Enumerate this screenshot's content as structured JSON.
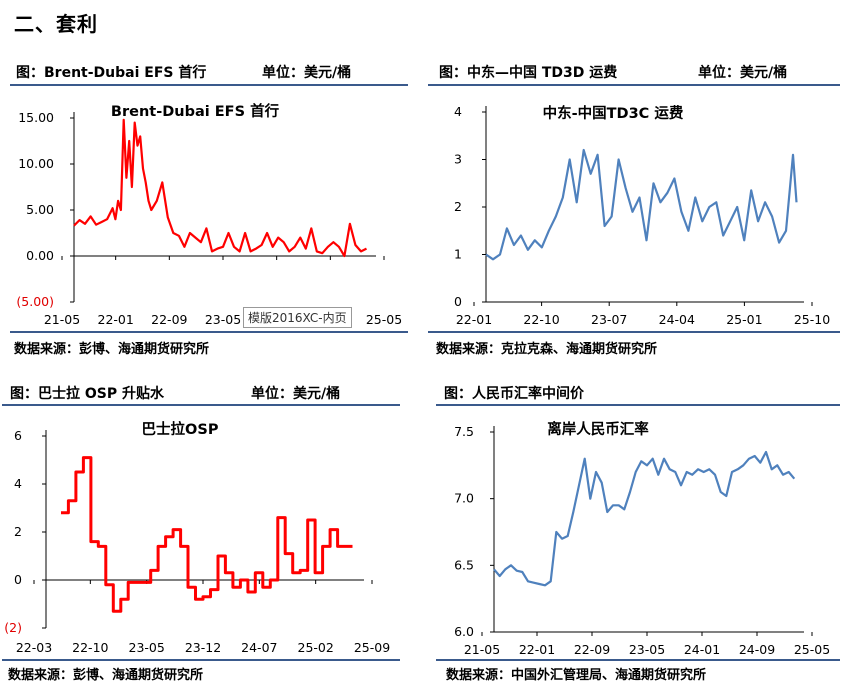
{
  "page": {
    "section_title": "二、套利",
    "overlay_label": "模版2016XC-内页"
  },
  "panels": [
    {
      "title": "图：Brent-Dubai EFS 首行",
      "unit": "单位：美元/桶",
      "source": "数据来源：彭博、海通期货研究所"
    },
    {
      "title": "图：中东—中国 TD3D 运费",
      "unit": "单位：美元/桶",
      "source": "数据来源：克拉克森、海通期货研究所"
    },
    {
      "title": "图：巴士拉 OSP 升贴水",
      "unit": "单位：美元/桶",
      "source": "数据来源：彭博、海通期货研究所"
    },
    {
      "title": "图：人民币汇率中间价",
      "unit": "",
      "source": "数据来源：中国外汇管理局、海通期货研究所"
    }
  ],
  "chart_data": [
    {
      "type": "line",
      "title": "Brent-Dubai EFS 首行",
      "color": "#ff0000",
      "y_tick_labels": [
        "15.00",
        "10.00",
        "5.00",
        "0.00",
        "(5.00)"
      ],
      "y_ticks": [
        15,
        10,
        5,
        0,
        -5
      ],
      "ylim": [
        -5,
        15
      ],
      "x_tick_labels": [
        "21-05",
        "22-01",
        "22-09",
        "23-05",
        "24-01",
        "24-09",
        "25-05"
      ],
      "xlim": [
        0,
        54
      ],
      "x": [
        0,
        1,
        2,
        3,
        4,
        5,
        6,
        7,
        7.5,
        8,
        8.5,
        9,
        9.5,
        10,
        10.5,
        11,
        11.5,
        12,
        12.5,
        13,
        13.5,
        14,
        15,
        16,
        17,
        18,
        19,
        20,
        21,
        22,
        23,
        24,
        25,
        26,
        27,
        28,
        29,
        30,
        31,
        32,
        33,
        34,
        35,
        36,
        37,
        38,
        39,
        40,
        41,
        42,
        43,
        44,
        45,
        46,
        47,
        48,
        49,
        50,
        51,
        52,
        53
      ],
      "values": [
        3.3,
        3.9,
        3.5,
        4.3,
        3.4,
        3.7,
        4.0,
        5.2,
        4.0,
        6.0,
        5.0,
        14.8,
        8.5,
        12.5,
        7.5,
        14.5,
        12.0,
        13.0,
        9.5,
        8.0,
        6.0,
        5.0,
        6.0,
        8.0,
        4.2,
        2.5,
        2.2,
        1.0,
        2.5,
        2.0,
        1.5,
        3.0,
        0.5,
        0.8,
        1.0,
        2.5,
        1.0,
        0.5,
        2.5,
        0.5,
        0.8,
        1.2,
        2.5,
        1.0,
        2.0,
        1.5,
        0.5,
        1.0,
        2.0,
        0.8,
        3.0,
        0.5,
        0.3,
        1.0,
        1.5,
        1.0,
        0.0,
        3.5,
        1.2,
        0.5,
        0.8
      ]
    },
    {
      "type": "line",
      "title": "中东-中国TD3C 运费",
      "color": "#4f81bd",
      "y_tick_labels": [
        "4",
        "3",
        "2",
        "1",
        "0"
      ],
      "y_ticks": [
        4,
        3,
        2,
        1,
        0
      ],
      "ylim": [
        0,
        4
      ],
      "x_tick_labels": [
        "22-01",
        "22-10",
        "23-07",
        "24-04",
        "25-01",
        "25-10"
      ],
      "xlim": [
        0,
        45
      ],
      "x": [
        0,
        1,
        2,
        3,
        4,
        5,
        6,
        7,
        8,
        9,
        10,
        11,
        12,
        13,
        14,
        15,
        16,
        17,
        18,
        19,
        20,
        21,
        22,
        23,
        24,
        25,
        26,
        27,
        28,
        29,
        30,
        31,
        32,
        33,
        34,
        35,
        36,
        37,
        38,
        39,
        40,
        41,
        42,
        43,
        44,
        44.5
      ],
      "values": [
        1.0,
        0.9,
        1.0,
        1.55,
        1.2,
        1.4,
        1.1,
        1.3,
        1.15,
        1.5,
        1.8,
        2.2,
        3.0,
        2.1,
        3.2,
        2.7,
        3.1,
        1.6,
        1.8,
        3.0,
        2.4,
        1.9,
        2.2,
        1.3,
        2.5,
        2.1,
        2.3,
        2.6,
        1.9,
        1.5,
        2.2,
        1.7,
        2.0,
        2.1,
        1.4,
        1.7,
        2.0,
        1.3,
        2.35,
        1.7,
        2.1,
        1.8,
        1.25,
        1.5,
        3.1,
        2.1
      ]
    },
    {
      "type": "line",
      "title": "巴士拉OSP",
      "color": "#ff0000",
      "y_tick_labels": [
        "6",
        "4",
        "2",
        "0",
        "(2)"
      ],
      "y_ticks": [
        6,
        4,
        2,
        0,
        -2
      ],
      "ylim": [
        -2,
        6
      ],
      "x_tick_labels": [
        "22-03",
        "22-10",
        "23-05",
        "23-12",
        "24-07",
        "25-02",
        "25-09"
      ],
      "xlim": [
        0,
        42
      ],
      "x": [
        2,
        3,
        4,
        5,
        6,
        7,
        8,
        9,
        10,
        11,
        12,
        13,
        14,
        15,
        16,
        17,
        18,
        19,
        20,
        21,
        22,
        23,
        24,
        25,
        26,
        27,
        28,
        29,
        30,
        31,
        32,
        33,
        34,
        35,
        36,
        37,
        38,
        39,
        40
      ],
      "values": [
        2.8,
        3.3,
        4.5,
        5.1,
        1.6,
        1.4,
        -0.2,
        -1.3,
        -0.8,
        -0.1,
        -0.1,
        -0.1,
        0.4,
        1.4,
        1.8,
        2.1,
        1.4,
        -0.3,
        -0.8,
        -0.7,
        -0.4,
        1.0,
        0.3,
        -0.3,
        0.0,
        -0.5,
        0.3,
        -0.3,
        0.0,
        2.6,
        1.1,
        0.3,
        0.4,
        2.5,
        0.3,
        1.4,
        2.1,
        1.4,
        1.4
      ]
    },
    {
      "type": "line",
      "title": "离岸人民币汇率",
      "color": "#4f81bd",
      "y_tick_labels": [
        "7.5",
        "7.0",
        "6.5",
        "6.0"
      ],
      "y_ticks": [
        7.5,
        7.0,
        6.5,
        6.0
      ],
      "ylim": [
        6.0,
        7.5
      ],
      "x_tick_labels": [
        "21-05",
        "22-01",
        "22-09",
        "23-05",
        "24-01",
        "24-09",
        "25-05"
      ],
      "xlim": [
        0,
        54
      ],
      "x": [
        0,
        1,
        2,
        3,
        4,
        5,
        6,
        7,
        8,
        9,
        10,
        11,
        12,
        13,
        14,
        15,
        16,
        17,
        18,
        19,
        20,
        21,
        22,
        23,
        24,
        25,
        26,
        27,
        28,
        29,
        30,
        31,
        32,
        33,
        34,
        35,
        36,
        37,
        38,
        39,
        40,
        41,
        42,
        43,
        44,
        45,
        46,
        47,
        48,
        49,
        50,
        51,
        52,
        53
      ],
      "values": [
        6.47,
        6.42,
        6.47,
        6.5,
        6.46,
        6.45,
        6.38,
        6.37,
        6.36,
        6.35,
        6.38,
        6.75,
        6.7,
        6.72,
        6.9,
        7.1,
        7.3,
        7.0,
        7.2,
        7.12,
        6.9,
        6.95,
        6.95,
        6.92,
        7.05,
        7.2,
        7.28,
        7.25,
        7.3,
        7.18,
        7.3,
        7.22,
        7.2,
        7.1,
        7.2,
        7.18,
        7.22,
        7.2,
        7.22,
        7.18,
        7.05,
        7.02,
        7.2,
        7.22,
        7.25,
        7.3,
        7.32,
        7.27,
        7.35,
        7.22,
        7.25,
        7.18,
        7.2,
        7.15
      ]
    }
  ]
}
